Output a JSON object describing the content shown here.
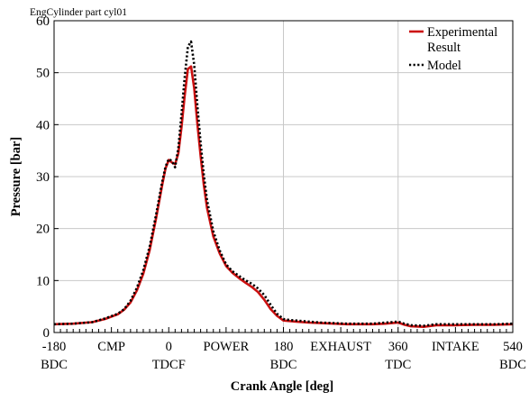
{
  "chart_data": {
    "type": "line",
    "title": "EngCylinder part cyl01",
    "xlabel": "Crank Angle [deg]",
    "ylabel": "Pressure [bar]",
    "xlim": [
      -180,
      540
    ],
    "ylim": [
      0,
      60
    ],
    "grid": true,
    "legend_position": "top-right",
    "x_ticks": [
      -180,
      180,
      540
    ],
    "x_tick_labels": [
      {
        "x": -180,
        "line1": "-180",
        "line2": "BDC"
      },
      {
        "x": 0,
        "line1": "0",
        "line2": "TDCF"
      },
      {
        "x": 180,
        "line1": "180",
        "line2": "BDC"
      },
      {
        "x": 360,
        "line1": "360",
        "line2": "TDC"
      },
      {
        "x": 540,
        "line1": "540",
        "line2": "BDC"
      }
    ],
    "phase_labels": [
      {
        "x": -90,
        "text": "CMP"
      },
      {
        "x": 90,
        "text": "POWER"
      },
      {
        "x": 270,
        "text": "EXHAUST"
      },
      {
        "x": 450,
        "text": "INTAKE"
      }
    ],
    "y_ticks": [
      0,
      10,
      20,
      30,
      40,
      50,
      60
    ],
    "series": [
      {
        "name": "Experimental Result",
        "legend_lines": [
          "Experimental",
          "Result"
        ],
        "color": "#cc1111",
        "style": "solid",
        "x": [
          -180,
          -150,
          -120,
          -100,
          -80,
          -70,
          -60,
          -50,
          -40,
          -30,
          -20,
          -10,
          -5,
          0,
          5,
          10,
          15,
          20,
          25,
          30,
          35,
          40,
          45,
          50,
          55,
          60,
          70,
          80,
          90,
          100,
          110,
          120,
          130,
          140,
          150,
          160,
          170,
          180,
          190,
          200,
          220,
          240,
          260,
          280,
          300,
          320,
          340,
          350,
          360,
          370,
          380,
          400,
          420,
          450,
          480,
          510,
          540
        ],
        "y": [
          1.6,
          1.7,
          2.0,
          2.6,
          3.5,
          4.4,
          5.8,
          8.1,
          11.3,
          15.8,
          21.9,
          28.6,
          31.6,
          33.2,
          32.7,
          32.4,
          34.5,
          39.5,
          45.5,
          50.7,
          51.2,
          47.0,
          40.0,
          34.0,
          28.5,
          24.0,
          18.5,
          15.2,
          12.8,
          11.5,
          10.5,
          9.6,
          8.8,
          7.8,
          6.3,
          4.5,
          3.2,
          2.3,
          2.2,
          2.1,
          1.9,
          1.8,
          1.7,
          1.6,
          1.6,
          1.6,
          1.7,
          1.8,
          1.9,
          1.5,
          1.2,
          1.1,
          1.4,
          1.4,
          1.5,
          1.5,
          1.6
        ]
      },
      {
        "name": "Model",
        "legend_lines": [
          "Model"
        ],
        "color": "#000000",
        "style": "dotted",
        "x": [
          -180,
          -150,
          -120,
          -100,
          -80,
          -70,
          -60,
          -50,
          -40,
          -30,
          -20,
          -10,
          -5,
          0,
          5,
          10,
          15,
          20,
          25,
          30,
          35,
          40,
          45,
          50,
          55,
          60,
          70,
          80,
          90,
          100,
          110,
          120,
          130,
          140,
          150,
          160,
          170,
          180,
          190,
          200,
          220,
          240,
          260,
          280,
          300,
          320,
          340,
          350,
          360,
          370,
          380,
          400,
          420,
          450,
          480,
          510,
          540
        ],
        "y": [
          1.6,
          1.7,
          2.0,
          2.7,
          3.6,
          4.5,
          6.1,
          8.6,
          12.0,
          16.5,
          22.6,
          29.2,
          31.9,
          33.4,
          33.0,
          31.8,
          35.5,
          42.0,
          49.0,
          55.0,
          56.0,
          51.5,
          43.5,
          36.5,
          30.5,
          25.5,
          19.5,
          15.8,
          13.1,
          11.8,
          10.9,
          10.1,
          9.4,
          8.5,
          7.2,
          5.3,
          3.6,
          2.6,
          2.4,
          2.3,
          2.1,
          1.9,
          1.8,
          1.7,
          1.7,
          1.7,
          1.9,
          2.0,
          2.1,
          1.7,
          1.4,
          1.3,
          1.6,
          1.6,
          1.6,
          1.6,
          1.7
        ]
      }
    ]
  }
}
